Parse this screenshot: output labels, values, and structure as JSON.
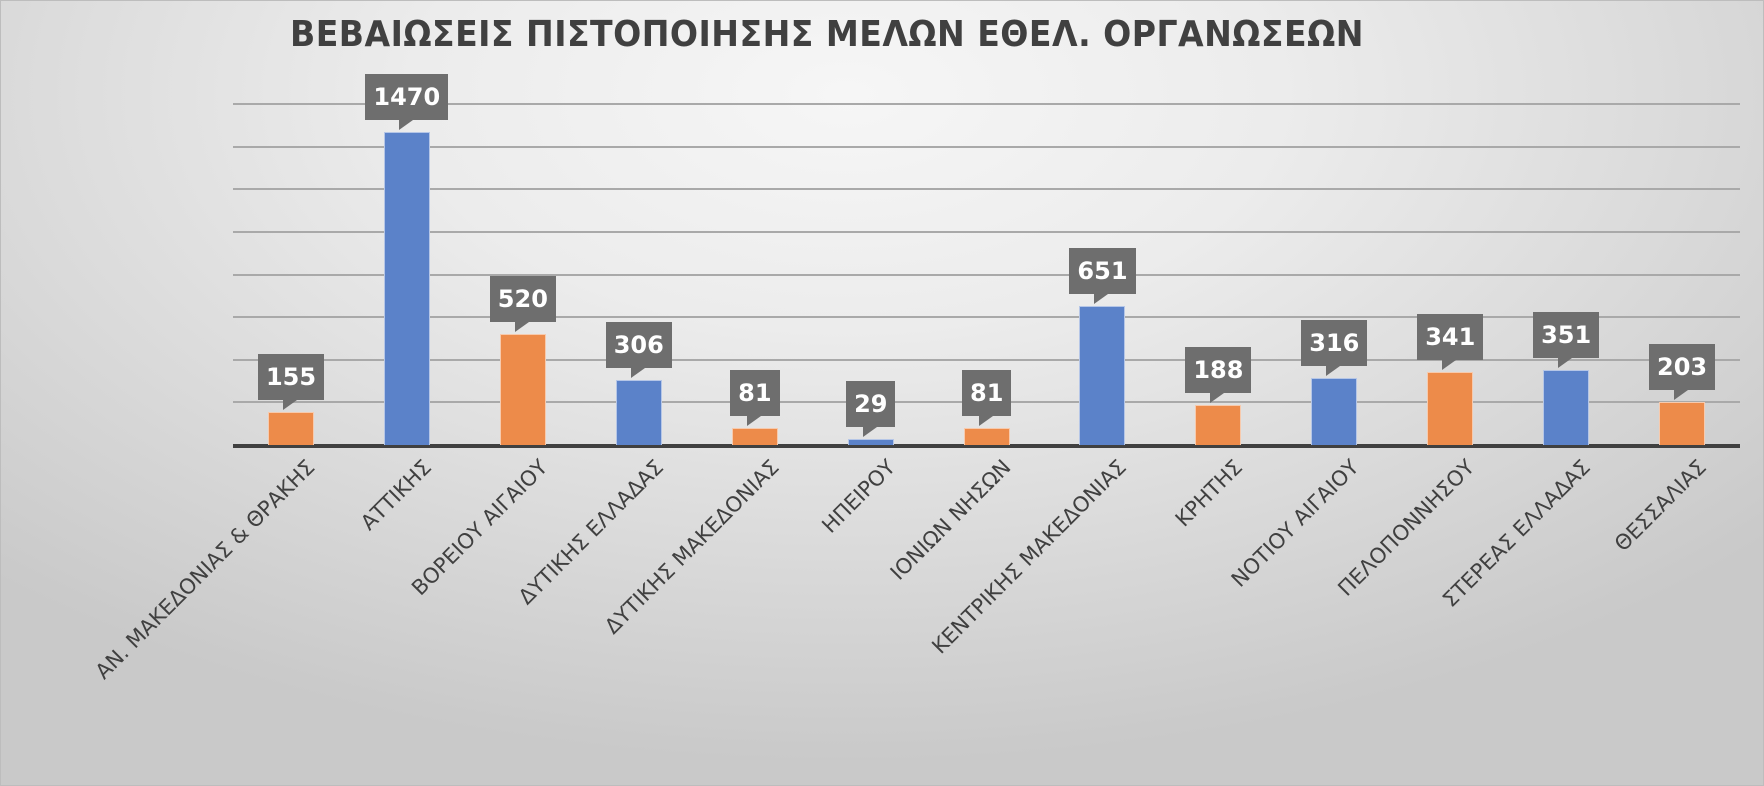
{
  "chart_data": {
    "type": "bar",
    "title": "ΒΕΒΑΙΩΣΕΙΣ ΠΙΣΤΟΠΟΙΗΣΗΣ ΜΕΛΩΝ ΕΘΕΛ. ΟΡΓΑΝΩΣΕΩΝ",
    "xlabel": "",
    "ylabel": "",
    "ylim": [
      0,
      1600
    ],
    "ytick_step": 200,
    "grid": true,
    "legend": null,
    "axis_tick_labels_y_visible": false,
    "categories": [
      "ΑΝ. ΜΑΚΕΔΟΝΙΑΣ & ΘΡΑΚΗΣ",
      "ΑΤΤΙΚΗΣ",
      "ΒΟΡΕΙΟΥ ΑΙΓΑΙΟΥ",
      "ΔΥΤΙΚΗΣ ΕΛΛΑΔΑΣ",
      "ΔΥΤΙΚΗΣ ΜΑΚΕΔΟΝΙΑΣ",
      "ΗΠΕΙΡΟΥ",
      "ΙΟΝΙΩΝ ΝΗΣΩΝ",
      "ΚΕΝΤΡΙΚΗΣ ΜΑΚΕΔΟΝΙΑΣ",
      "ΚΡΗΤΗΣ",
      "ΝΟΤΙΟΥ ΑΙΓΑΙΟΥ",
      "ΠΕΛΟΠΟΝΝΗΣΟΥ",
      "ΣΤΕΡΕΑΣ ΕΛΛΑΔΑΣ",
      "ΘΕΣΣΑΛΙΑΣ"
    ],
    "values": [
      155,
      1470,
      520,
      306,
      81,
      29,
      81,
      651,
      188,
      316,
      341,
      351,
      203
    ],
    "bar_colors": [
      "#ED8B4A",
      "#5B82C9",
      "#ED8B4A",
      "#5B82C9",
      "#ED8B4A",
      "#5B82C9",
      "#ED8B4A",
      "#5B82C9",
      "#ED8B4A",
      "#5B82C9",
      "#ED8B4A",
      "#5B82C9",
      "#ED8B4A"
    ],
    "data_labels": [
      "155",
      "1470",
      "520",
      "306",
      "81",
      "29",
      "81",
      "651",
      "188",
      "316",
      "341",
      "351",
      "203"
    ],
    "data_label_style": "callout",
    "colors": {
      "orange": "#ED8B4A",
      "blue": "#5B82C9",
      "label_box": "#6E6E6E",
      "gridline": "#A9A9A9",
      "axis": "#404040",
      "text": "#404040"
    }
  }
}
